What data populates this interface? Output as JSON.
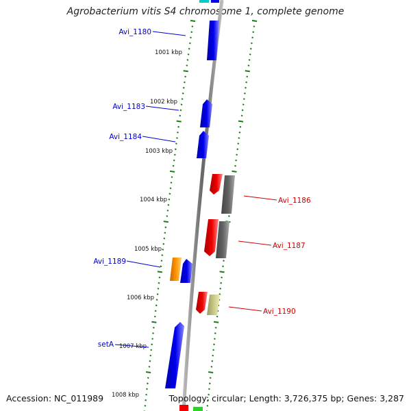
{
  "title": "Agrobacterium vitis S4 chromosome 1, complete genome",
  "accession": "Accession: NC_011989",
  "topology": "Topology: circular; Length: 3,726,375 bp; Genes: 3,287",
  "colors": {
    "forward_gene": "#0000ee",
    "reverse_gene": "#ee0000",
    "rrna": "#ff9900",
    "pseudo": "#666666",
    "misc": "#cccc88",
    "backbone": "#808080",
    "tick": "#1a7a1a",
    "label_forward": "#0000cc",
    "label_reverse": "#cc0000"
  },
  "ruler_labels": [
    "1001 kbp",
    "1002 kbp",
    "1003 kbp",
    "1004 kbp",
    "1005 kbp",
    "1006 kbp",
    "1007 kbp",
    "1008 kbp"
  ],
  "gene_labels": {
    "left": [
      "Avi_1180",
      "Avi_1183",
      "Avi_1184",
      "Avi_1189",
      "setA"
    ],
    "right": [
      "Avi_1186",
      "Avi_1187",
      "Avi_1190"
    ]
  }
}
